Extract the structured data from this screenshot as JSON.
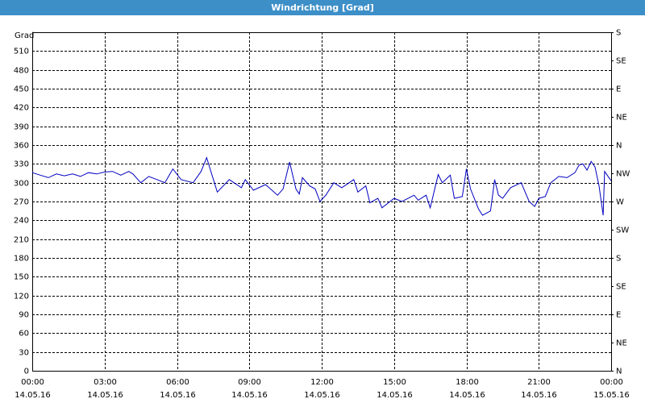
{
  "chart_data": {
    "type": "line",
    "title": "Windrichtung [Grad]",
    "ylabel": "Grad",
    "x": [
      0,
      0.33,
      0.67,
      1,
      1.33,
      1.67,
      2,
      2.33,
      2.67,
      3,
      3.33,
      3.67,
      4,
      4.17,
      4.5,
      4.83,
      5.17,
      5.5,
      5.83,
      6.17,
      6.67,
      7,
      7.23,
      7.67,
      8.17,
      8.67,
      8.83,
      9.17,
      9.67,
      10.17,
      10.4,
      10.67,
      10.93,
      11.07,
      11.2,
      11.5,
      11.73,
      11.93,
      12.17,
      12.5,
      12.83,
      13.07,
      13.33,
      13.5,
      13.83,
      14,
      14.33,
      14.5,
      15,
      15.33,
      15.83,
      16,
      16.33,
      16.5,
      16.83,
      17,
      17.33,
      17.5,
      17.83,
      18,
      18.17,
      18.5,
      18.67,
      19,
      19.17,
      19.33,
      19.5,
      19.83,
      20.27,
      20.6,
      20.83,
      21,
      21.27,
      21.5,
      21.83,
      22.17,
      22.5,
      22.67,
      22.83,
      23,
      23.17,
      23.33,
      23.5,
      23.67,
      23.73,
      24
    ],
    "series": [
      {
        "name": "Windrichtung",
        "color": "#0000c0",
        "values": [
          316,
          312,
          308,
          314,
          311,
          314,
          310,
          316,
          314,
          317,
          318,
          312,
          318,
          314,
          300,
          310,
          305,
          300,
          322,
          305,
          300,
          318,
          340,
          285,
          305,
          292,
          305,
          288,
          297,
          280,
          290,
          333,
          290,
          282,
          308,
          295,
          290,
          270,
          280,
          300,
          292,
          298,
          305,
          285,
          295,
          268,
          275,
          260,
          275,
          270,
          280,
          272,
          280,
          260,
          313,
          300,
          312,
          275,
          278,
          322,
          290,
          258,
          248,
          255,
          305,
          280,
          275,
          292,
          300,
          270,
          262,
          275,
          278,
          300,
          310,
          308,
          316,
          328,
          330,
          320,
          334,
          325,
          295,
          248,
          318,
          303
        ]
      }
    ],
    "xlim": [
      0,
      24
    ],
    "xticks": [
      {
        "value": 0,
        "label": "00:00"
      },
      {
        "value": 3,
        "label": "03:00"
      },
      {
        "value": 6,
        "label": "06:00"
      },
      {
        "value": 9,
        "label": "09:00"
      },
      {
        "value": 12,
        "label": "12:00"
      },
      {
        "value": 15,
        "label": "15:00"
      },
      {
        "value": 18,
        "label": "18:00"
      },
      {
        "value": 21,
        "label": "21:00"
      },
      {
        "value": 24,
        "label": "00:00"
      }
    ],
    "xtick_dates": [
      "14.05.16",
      "14.05.16",
      "14.05.16",
      "14.05.16",
      "14.05.16",
      "14.05.16",
      "14.05.16",
      "14.05.16",
      "15.05.16"
    ],
    "ylim": [
      0,
      540
    ],
    "yticks": [
      0,
      30,
      60,
      90,
      120,
      150,
      180,
      210,
      240,
      270,
      300,
      330,
      360,
      390,
      420,
      450,
      480,
      510
    ],
    "y2lim": [
      0,
      540
    ],
    "y2ticks": [
      {
        "value": 0,
        "label": "N"
      },
      {
        "value": 45,
        "label": "NE"
      },
      {
        "value": 90,
        "label": "E"
      },
      {
        "value": 135,
        "label": "SE"
      },
      {
        "value": 180,
        "label": "S"
      },
      {
        "value": 225,
        "label": "SW"
      },
      {
        "value": 270,
        "label": "W"
      },
      {
        "value": 315,
        "label": "NW"
      },
      {
        "value": 360,
        "label": "N"
      },
      {
        "value": 405,
        "label": "NE"
      },
      {
        "value": 450,
        "label": "E"
      },
      {
        "value": 495,
        "label": "SE"
      },
      {
        "value": 540,
        "label": "S"
      }
    ],
    "grid": true
  }
}
